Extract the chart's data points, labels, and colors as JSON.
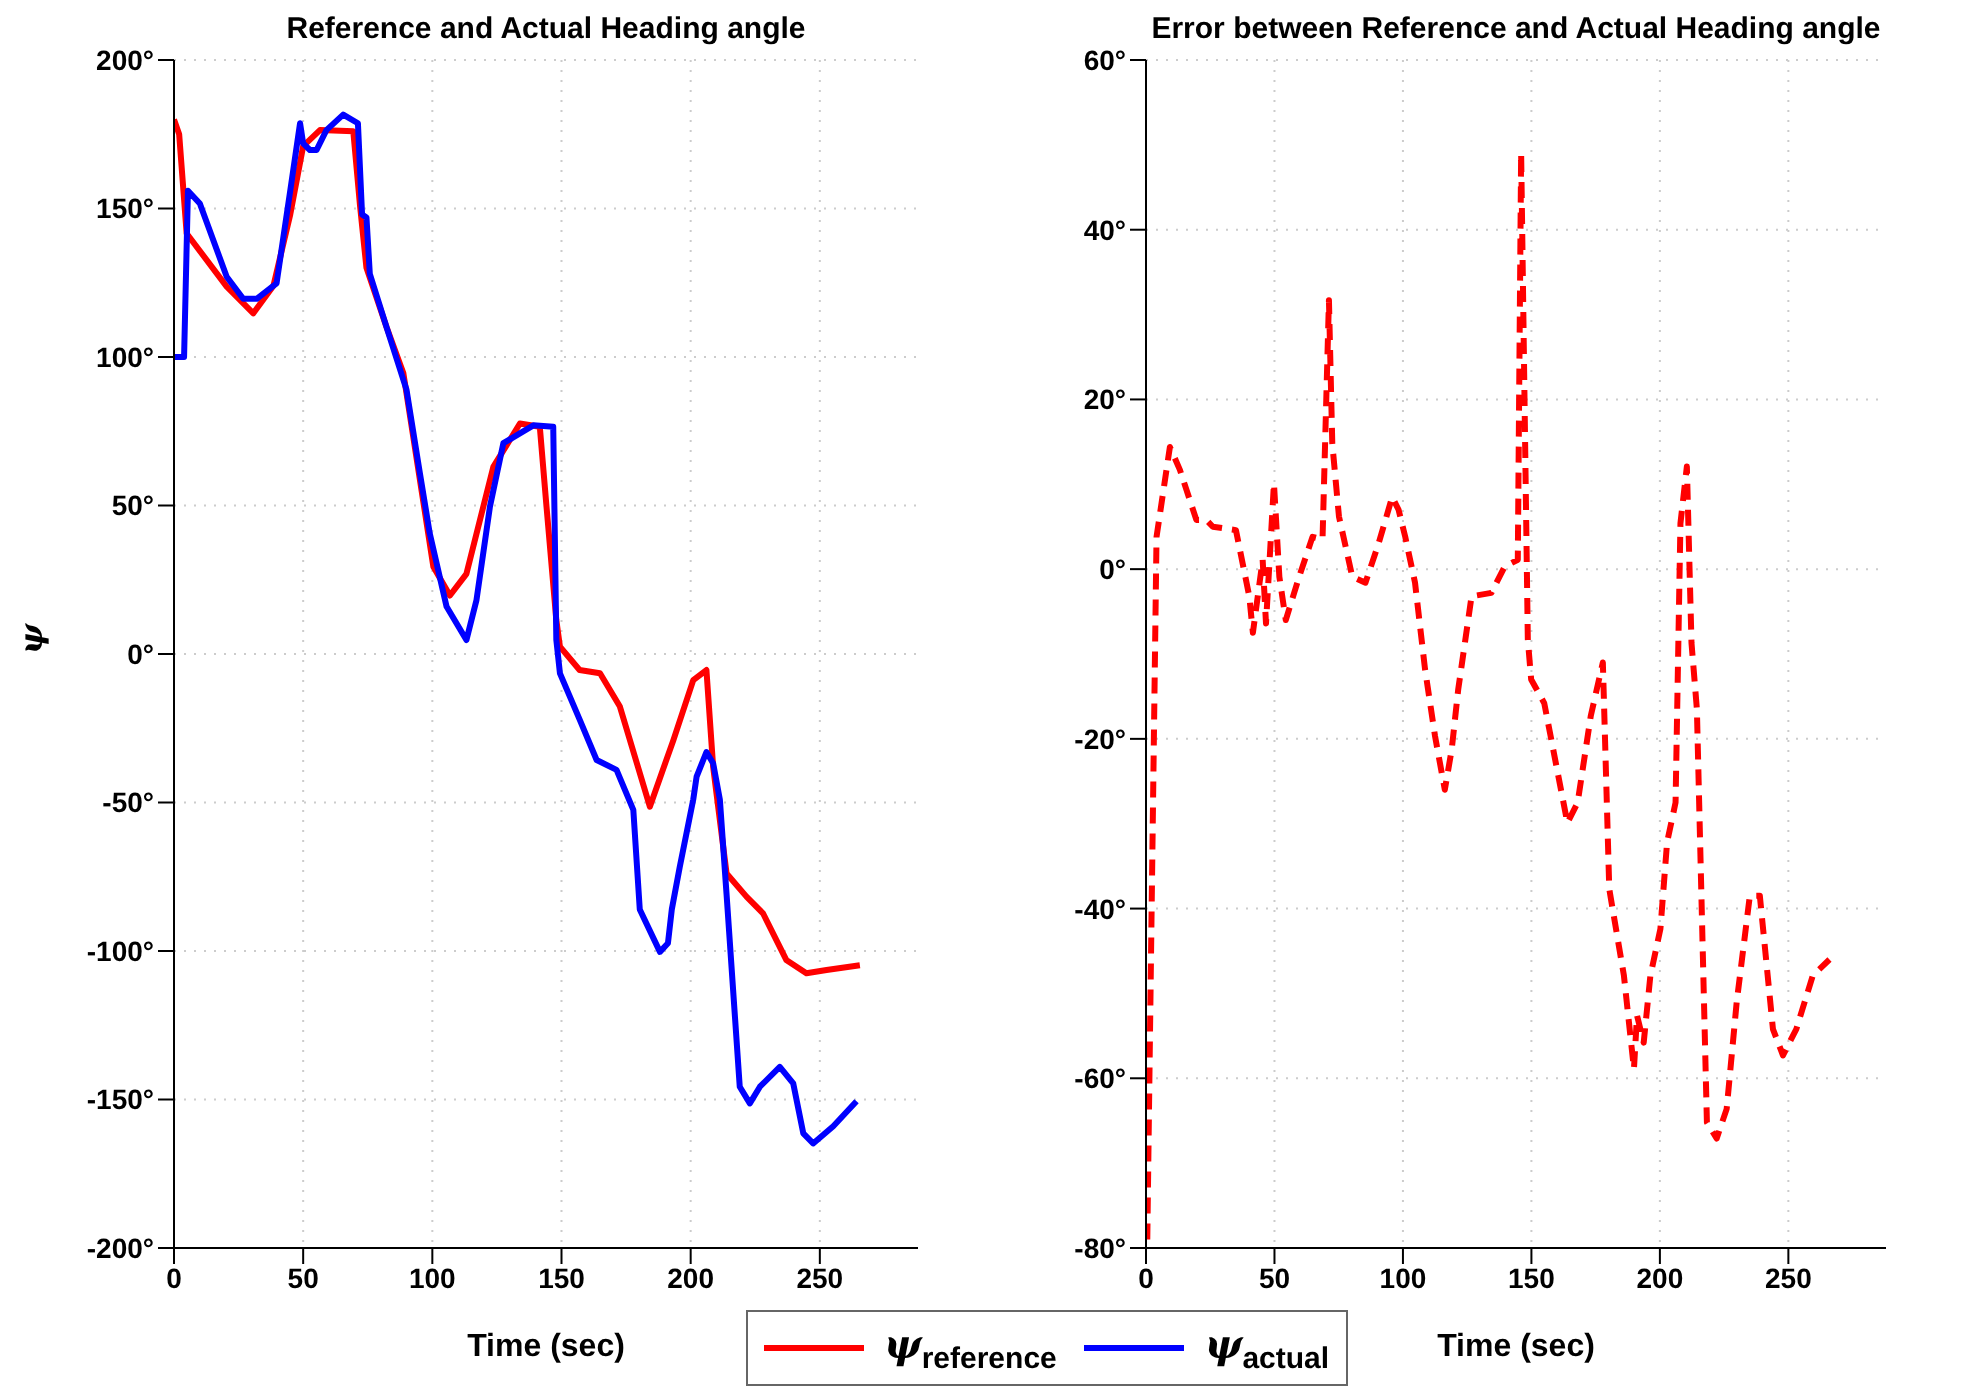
{
  "chart_data": [
    {
      "type": "line",
      "title": "Reference and Actual Heading angle",
      "xlabel": "Time (sec)",
      "ylabel": "ψ",
      "xlim": [
        0,
        288
      ],
      "xticks": [
        0,
        50,
        100,
        150,
        200,
        250
      ],
      "ylim": [
        -200,
        200
      ],
      "yticks": [
        {
          "value": -200,
          "label": "-200°"
        },
        {
          "value": -150,
          "label": "-150°"
        },
        {
          "value": -100,
          "label": "-100°"
        },
        {
          "value": -50,
          "label": "-50°"
        },
        {
          "value": 0,
          "label": "0°"
        },
        {
          "value": 50,
          "label": "50°"
        },
        {
          "value": 100,
          "label": "100°"
        },
        {
          "value": 150,
          "label": "150°"
        },
        {
          "value": 200,
          "label": "200°"
        }
      ],
      "grid": true,
      "legend": "bottom",
      "line_style": "solid",
      "series": [
        {
          "name": "ψ$_{reference}$",
          "color": "#ff0000",
          "x": [
            0,
            2,
            4.9,
            20.4,
            30.7,
            38.5,
            45,
            50,
            56.5,
            69.4,
            72,
            74.5,
            82.3,
            88.8,
            100.4,
            106.8,
            113.2,
            123.6,
            133.9,
            141.6,
            144.2,
            148,
            149.4,
            157,
            164.9,
            172.6,
            184.2,
            193.3,
            201,
            206.1,
            208.7,
            213.9,
            221.6,
            228,
            237,
            244.8,
            252.6,
            265.5
          ],
          "values": [
            180,
            175,
            141.6,
            123.7,
            114.7,
            124,
            148,
            171,
            176.4,
            176,
            151,
            130,
            110,
            94.5,
            29.4,
            19.7,
            27,
            63,
            77.6,
            76.5,
            49.6,
            11.4,
            2.5,
            -5.4,
            -6.5,
            -17.7,
            -51.4,
            -29,
            -8.8,
            -5.4,
            -38,
            -73.9,
            -81.7,
            -87.3,
            -103,
            -107.5,
            -106.4,
            -104.8
          ]
        },
        {
          "name": "ψ$_{actual}$",
          "color": "#0000ff",
          "x": [
            0,
            3.9,
            5.4,
            10,
            20.4,
            26.8,
            32,
            39.7,
            45,
            48.8,
            50,
            52.6,
            55.2,
            59,
            65.5,
            71.2,
            72.8,
            74.5,
            75.8,
            82.3,
            90,
            95.2,
            99,
            105.5,
            113.2,
            117.1,
            122.3,
            127.5,
            133.9,
            139.1,
            146.8,
            148,
            149.4,
            157,
            163.6,
            171.3,
            177.8,
            180.3,
            188.1,
            191.2,
            192.7,
            195.8,
            201,
            202.3,
            206.1,
            208.7,
            211.3,
            213.9,
            219,
            222.9,
            226.8,
            234.5,
            239.7,
            243.6,
            247.4,
            255.2,
            264.2
          ],
          "values": [
            100,
            100,
            156,
            151.7,
            127,
            119.6,
            119.6,
            124.8,
            156,
            178.7,
            171.9,
            169.7,
            169.7,
            176.4,
            181.6,
            178.7,
            148,
            147,
            128,
            110,
            89,
            60.8,
            40.6,
            16,
            4.7,
            18.2,
            49.6,
            71,
            74.3,
            77,
            76.5,
            4.7,
            -6.5,
            -22,
            -35.7,
            -39,
            -52.5,
            -86,
            -100.3,
            -97.4,
            -86,
            -71.6,
            -49,
            -41.3,
            -33,
            -36.8,
            -49,
            -81,
            -145.7,
            -151.3,
            -145.7,
            -139,
            -144.6,
            -161.4,
            -164.8,
            -159,
            -150.6
          ]
        }
      ]
    },
    {
      "type": "line",
      "title": "Error between Reference and Actual Heading angle",
      "xlabel": "Time (sec)",
      "xlim": [
        0,
        288
      ],
      "xticks": [
        0,
        50,
        100,
        150,
        200,
        250
      ],
      "ylim": [
        -80,
        60
      ],
      "yticks": [
        {
          "value": -80,
          "label": "-80°"
        },
        {
          "value": -60,
          "label": "-60°"
        },
        {
          "value": -40,
          "label": "-40°"
        },
        {
          "value": -20,
          "label": "-20°"
        },
        {
          "value": 0,
          "label": "0°"
        },
        {
          "value": 20,
          "label": "20°"
        },
        {
          "value": 40,
          "label": "40°"
        },
        {
          "value": 60,
          "label": "60°"
        }
      ],
      "grid": true,
      "line_style": "dashed",
      "series": [
        {
          "color": "#ff0000",
          "x": [
            0.5,
            4.1,
            9.3,
            13.2,
            19.6,
            23.5,
            26,
            35,
            40.2,
            41.6,
            45.4,
            46.7,
            49.8,
            51.9,
            54.4,
            59.6,
            64.8,
            68.7,
            71.2,
            72.5,
            75.1,
            80.3,
            85.4,
            90.6,
            95.8,
            98.3,
            100.9,
            104.7,
            108.6,
            112.5,
            116.3,
            119,
            121.5,
            126.7,
            134.4,
            139.6,
            144.7,
            146,
            148.6,
            149.9,
            155,
            164,
            168,
            173.1,
            177.8,
            180.3,
            186,
            189.9,
            191.1,
            193.7,
            196.3,
            200.2,
            202.8,
            206.1,
            208,
            210.5,
            212.3,
            214.4,
            218.3,
            222.1,
            226,
            229.9,
            235,
            238.9,
            244,
            247.9,
            253.1,
            259.5,
            266
          ],
          "values": [
            -79,
            3.8,
            14.4,
            11.7,
            5.8,
            5.8,
            5,
            4.6,
            -3.2,
            -7.5,
            1.1,
            -6.4,
            10.1,
            -0.9,
            -6,
            -0.9,
            3.8,
            3.5,
            31.7,
            14.8,
            6.2,
            -0.9,
            -1.6,
            3.1,
            8.5,
            7,
            3.8,
            -1.6,
            -11.8,
            -19.7,
            -26,
            -21.2,
            -14.2,
            -3.2,
            -2.8,
            0.3,
            1.1,
            49,
            -8.3,
            -13,
            -15.8,
            -29.9,
            -27.5,
            -17.3,
            -11,
            -37.7,
            -47.9,
            -58.9,
            -52.6,
            -55.8,
            -47.9,
            -42.4,
            -32.2,
            -27.5,
            5.4,
            12.1,
            -8.7,
            -16.5,
            -65.2,
            -67.1,
            -63.6,
            -51,
            -38.5,
            -38.5,
            -54.2,
            -57.3,
            -54.2,
            -47.9,
            -46
          ]
        }
      ]
    }
  ]
}
